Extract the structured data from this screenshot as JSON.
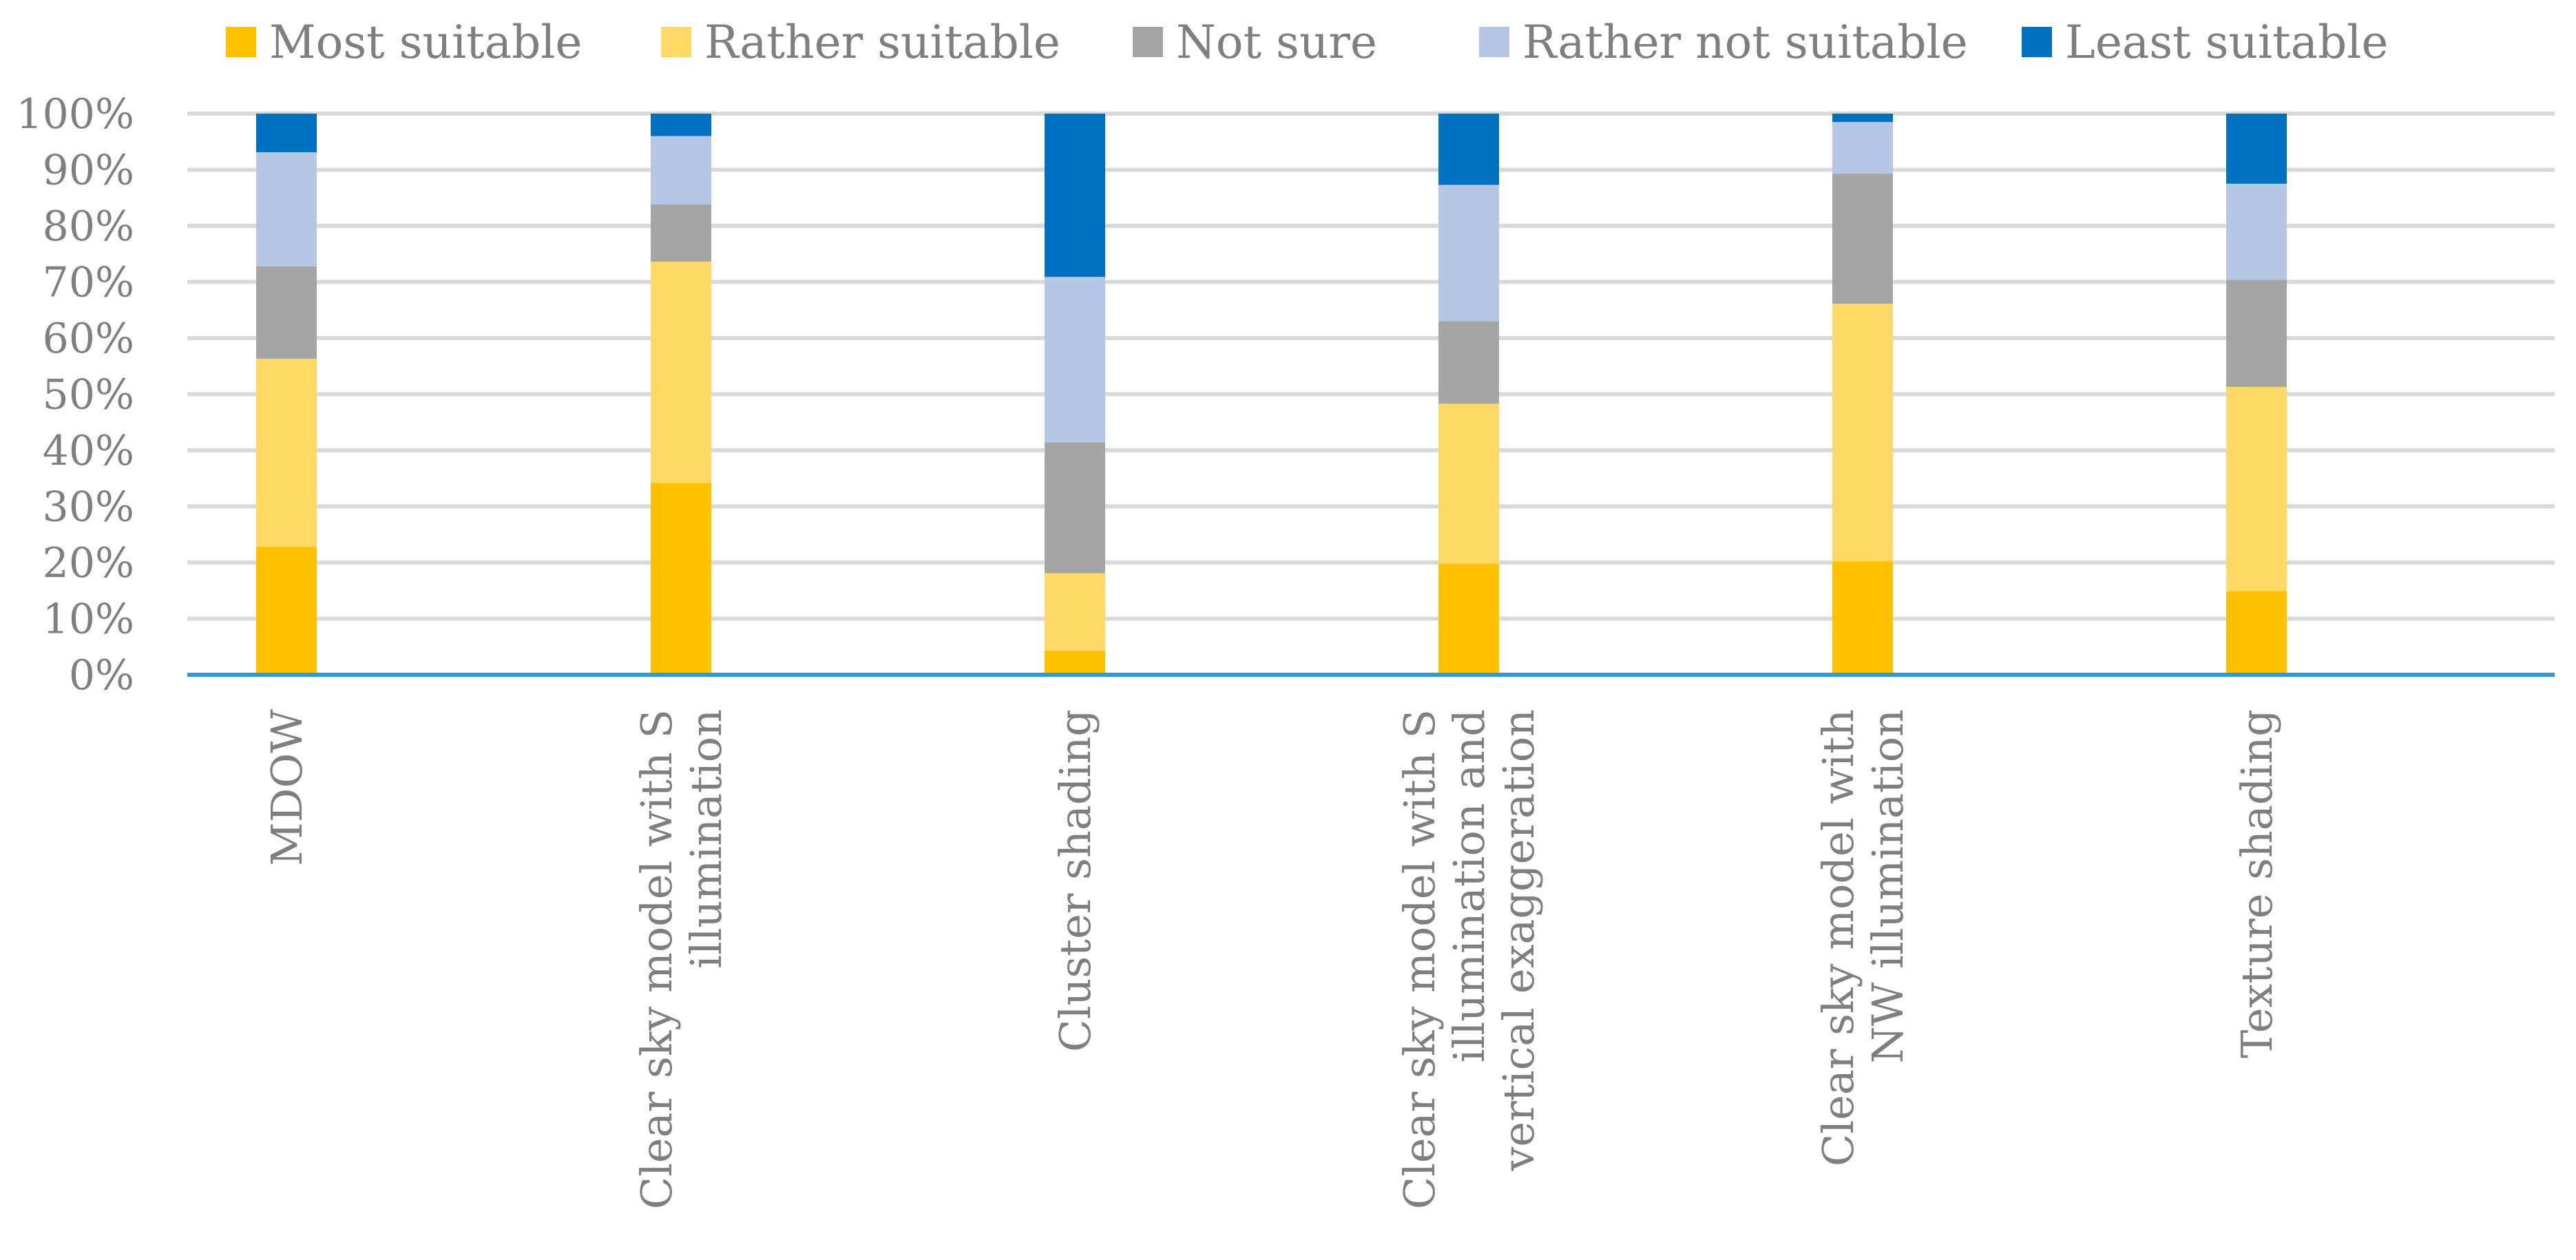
{
  "chart_data": {
    "type": "bar",
    "stacked": true,
    "normalized": true,
    "title": "",
    "xlabel": "",
    "ylabel": "",
    "ylim": [
      0,
      100
    ],
    "yticks": [
      0,
      10,
      20,
      30,
      40,
      50,
      60,
      70,
      80,
      90,
      100
    ],
    "ytick_labels": [
      "0%",
      "10%",
      "20%",
      "30%",
      "40%",
      "50%",
      "60%",
      "70%",
      "80%",
      "90%",
      "100%"
    ],
    "grid": true,
    "legend_position": "top",
    "categories": [
      [
        "MDOW"
      ],
      [
        "Clear sky model with S",
        "illumination"
      ],
      [
        "Cluster shading"
      ],
      [
        "Clear sky model with S",
        "illumination and",
        "vertical exaggeration"
      ],
      [
        "Clear sky model with",
        "NW illumination"
      ],
      [
        "Texture shading"
      ]
    ],
    "series": [
      {
        "name": "Most suitable",
        "color": "#FFC000",
        "values": [
          22.8,
          34.2,
          4.3,
          19.8,
          20.2,
          14.9
        ]
      },
      {
        "name": "Rather suitable",
        "color": "#FFD966",
        "values": [
          33.5,
          39.4,
          13.8,
          28.5,
          45.9,
          36.4
        ]
      },
      {
        "name": "Not sure",
        "color": "#A5A5A5",
        "values": [
          16.5,
          10.2,
          23.3,
          14.7,
          23.2,
          19.1
        ]
      },
      {
        "name": "Rather not suitable",
        "color": "#B4C7E7",
        "values": [
          20.3,
          12.2,
          29.5,
          24.3,
          9.2,
          17.1
        ]
      },
      {
        "name": "Least suitable",
        "color": "#0070C0",
        "values": [
          6.9,
          4.0,
          29.1,
          12.7,
          1.5,
          12.5
        ]
      }
    ],
    "gridline_color": "#D9D9D9",
    "axis_color": "#2E9BD6"
  }
}
